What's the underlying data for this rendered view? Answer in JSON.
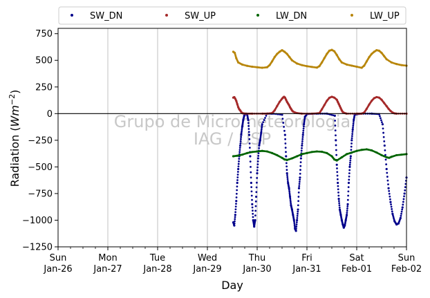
{
  "chart_data": {
    "type": "scatter",
    "title": "",
    "xlabel": "Day",
    "ylabel": "Radiation (Wm⁻²)",
    "ylabel_parts": {
      "main": "Radiation (",
      "unit": "Wm",
      "exp": "−2",
      "close": ")"
    },
    "watermark": [
      "Grupo de Micrometeorologia",
      "IAG / USP"
    ],
    "xlim": [
      0,
      7
    ],
    "ylim": [
      -1250,
      800
    ],
    "yticks": [
      750,
      500,
      250,
      0,
      -250,
      -500,
      -750,
      -1000,
      -1250
    ],
    "ytick_labels": [
      "750",
      "500",
      "250",
      "0",
      "−250",
      "−500",
      "−750",
      "−1000",
      "−1250"
    ],
    "xticks": [
      {
        "day": 0,
        "line1": "Sun",
        "line2": "Jan-26"
      },
      {
        "day": 1,
        "line1": "Mon",
        "line2": "Jan-27"
      },
      {
        "day": 2,
        "line1": "Tue",
        "line2": "Jan-28"
      },
      {
        "day": 3,
        "line1": "Wed",
        "line2": "Jan-29"
      },
      {
        "day": 4,
        "line1": "Thu",
        "line2": "Jan-30"
      },
      {
        "day": 5,
        "line1": "Fri",
        "line2": "Jan-31"
      },
      {
        "day": 6,
        "line1": "Sat",
        "line2": "Feb-01"
      },
      {
        "day": 7,
        "line1": "Sun",
        "line2": "Feb-02"
      }
    ],
    "grid": "x",
    "zero_line": 0,
    "legend": {
      "placement": "top",
      "columns": 4
    },
    "series": [
      {
        "name": "SW_DN",
        "color": "#00008b",
        "points": [
          [
            3.52,
            -1020
          ],
          [
            3.54,
            -1050
          ],
          [
            3.56,
            -950
          ],
          [
            3.58,
            -820
          ],
          [
            3.6,
            -650
          ],
          [
            3.62,
            -520
          ],
          [
            3.64,
            -400
          ],
          [
            3.66,
            -300
          ],
          [
            3.68,
            -200
          ],
          [
            3.7,
            -120
          ],
          [
            3.72,
            -60
          ],
          [
            3.74,
            -20
          ],
          [
            3.76,
            -5
          ],
          [
            3.78,
            0
          ],
          [
            3.8,
            -10
          ],
          [
            3.82,
            -60
          ],
          [
            3.84,
            -200
          ],
          [
            3.86,
            -400
          ],
          [
            3.88,
            -650
          ],
          [
            3.9,
            -850
          ],
          [
            3.92,
            -1000
          ],
          [
            3.94,
            -1060
          ],
          [
            3.96,
            -1000
          ],
          [
            3.98,
            -780
          ],
          [
            4.0,
            -560
          ],
          [
            4.02,
            -420
          ],
          [
            4.04,
            -300
          ],
          [
            4.06,
            -250
          ],
          [
            4.08,
            -180
          ],
          [
            4.1,
            -100
          ],
          [
            4.2,
            0
          ],
          [
            4.3,
            0
          ],
          [
            4.5,
            -10
          ],
          [
            4.56,
            -200
          ],
          [
            4.58,
            -400
          ],
          [
            4.6,
            -560
          ],
          [
            4.62,
            -650
          ],
          [
            4.64,
            -700
          ],
          [
            4.66,
            -780
          ],
          [
            4.68,
            -860
          ],
          [
            4.7,
            -900
          ],
          [
            4.72,
            -950
          ],
          [
            4.74,
            -1000
          ],
          [
            4.76,
            -1080
          ],
          [
            4.78,
            -1100
          ],
          [
            4.8,
            -1000
          ],
          [
            4.82,
            -900
          ],
          [
            4.84,
            -700
          ],
          [
            4.86,
            -600
          ],
          [
            4.88,
            -420
          ],
          [
            4.9,
            -300
          ],
          [
            4.92,
            -200
          ],
          [
            4.94,
            -100
          ],
          [
            4.96,
            -30
          ],
          [
            5.0,
            -5
          ],
          [
            5.2,
            0
          ],
          [
            5.4,
            0
          ],
          [
            5.56,
            -20
          ],
          [
            5.58,
            -250
          ],
          [
            5.6,
            -480
          ],
          [
            5.62,
            -650
          ],
          [
            5.64,
            -800
          ],
          [
            5.66,
            -900
          ],
          [
            5.68,
            -950
          ],
          [
            5.7,
            -1000
          ],
          [
            5.72,
            -1040
          ],
          [
            5.74,
            -1070
          ],
          [
            5.76,
            -1050
          ],
          [
            5.78,
            -1000
          ],
          [
            5.8,
            -950
          ],
          [
            5.82,
            -850
          ],
          [
            5.84,
            -650
          ],
          [
            5.86,
            -500
          ],
          [
            5.88,
            -400
          ],
          [
            5.9,
            -250
          ],
          [
            5.92,
            -150
          ],
          [
            5.94,
            -60
          ],
          [
            5.96,
            -10
          ],
          [
            6.1,
            0
          ],
          [
            6.3,
            0
          ],
          [
            6.45,
            -5
          ],
          [
            6.52,
            -100
          ],
          [
            6.56,
            -300
          ],
          [
            6.6,
            -520
          ],
          [
            6.64,
            -700
          ],
          [
            6.68,
            -830
          ],
          [
            6.72,
            -940
          ],
          [
            6.76,
            -1010
          ],
          [
            6.8,
            -1040
          ],
          [
            6.84,
            -1030
          ],
          [
            6.88,
            -980
          ],
          [
            6.92,
            -880
          ],
          [
            6.96,
            -750
          ],
          [
            7.0,
            -600
          ]
        ]
      },
      {
        "name": "SW_UP",
        "color": "#a52a2a",
        "points": [
          [
            3.52,
            150
          ],
          [
            3.54,
            155
          ],
          [
            3.56,
            140
          ],
          [
            3.58,
            120
          ],
          [
            3.6,
            90
          ],
          [
            3.62,
            60
          ],
          [
            3.64,
            40
          ],
          [
            3.66,
            30
          ],
          [
            3.68,
            15
          ],
          [
            3.7,
            5
          ],
          [
            3.72,
            2
          ],
          [
            3.76,
            0
          ],
          [
            3.9,
            0
          ],
          [
            4.1,
            0
          ],
          [
            4.2,
            0
          ],
          [
            4.3,
            5
          ],
          [
            4.35,
            30
          ],
          [
            4.4,
            70
          ],
          [
            4.45,
            110
          ],
          [
            4.5,
            140
          ],
          [
            4.52,
            150
          ],
          [
            4.54,
            158
          ],
          [
            4.56,
            150
          ],
          [
            4.58,
            130
          ],
          [
            4.6,
            110
          ],
          [
            4.62,
            95
          ],
          [
            4.64,
            80
          ],
          [
            4.66,
            60
          ],
          [
            4.68,
            45
          ],
          [
            4.7,
            30
          ],
          [
            4.72,
            20
          ],
          [
            4.76,
            10
          ],
          [
            4.8,
            5
          ],
          [
            4.9,
            0
          ],
          [
            5.1,
            0
          ],
          [
            5.25,
            5
          ],
          [
            5.3,
            40
          ],
          [
            5.35,
            80
          ],
          [
            5.4,
            120
          ],
          [
            5.45,
            148
          ],
          [
            5.5,
            158
          ],
          [
            5.55,
            150
          ],
          [
            5.6,
            130
          ],
          [
            5.62,
            110
          ],
          [
            5.64,
            90
          ],
          [
            5.66,
            70
          ],
          [
            5.68,
            50
          ],
          [
            5.7,
            30
          ],
          [
            5.72,
            15
          ],
          [
            5.76,
            5
          ],
          [
            5.8,
            0
          ],
          [
            6.0,
            0
          ],
          [
            6.1,
            0
          ],
          [
            6.15,
            10
          ],
          [
            6.2,
            45
          ],
          [
            6.25,
            85
          ],
          [
            6.3,
            120
          ],
          [
            6.35,
            145
          ],
          [
            6.4,
            155
          ],
          [
            6.45,
            150
          ],
          [
            6.5,
            130
          ],
          [
            6.55,
            100
          ],
          [
            6.6,
            70
          ],
          [
            6.64,
            45
          ],
          [
            6.68,
            25
          ],
          [
            6.72,
            10
          ],
          [
            6.76,
            2
          ],
          [
            6.8,
            0
          ],
          [
            7.0,
            0
          ]
        ]
      },
      {
        "name": "LW_DN",
        "color": "#006400",
        "points": [
          [
            3.52,
            -400
          ],
          [
            3.6,
            -395
          ],
          [
            3.7,
            -385
          ],
          [
            3.8,
            -370
          ],
          [
            3.9,
            -360
          ],
          [
            4.0,
            -355
          ],
          [
            4.1,
            -350
          ],
          [
            4.2,
            -355
          ],
          [
            4.3,
            -370
          ],
          [
            4.4,
            -390
          ],
          [
            4.5,
            -415
          ],
          [
            4.55,
            -430
          ],
          [
            4.6,
            -435
          ],
          [
            4.7,
            -420
          ],
          [
            4.8,
            -400
          ],
          [
            4.9,
            -380
          ],
          [
            5.0,
            -370
          ],
          [
            5.1,
            -360
          ],
          [
            5.2,
            -355
          ],
          [
            5.3,
            -358
          ],
          [
            5.4,
            -370
          ],
          [
            5.5,
            -400
          ],
          [
            5.55,
            -430
          ],
          [
            5.6,
            -440
          ],
          [
            5.7,
            -410
          ],
          [
            5.8,
            -380
          ],
          [
            5.9,
            -365
          ],
          [
            6.0,
            -350
          ],
          [
            6.1,
            -340
          ],
          [
            6.2,
            -335
          ],
          [
            6.3,
            -345
          ],
          [
            6.4,
            -365
          ],
          [
            6.5,
            -390
          ],
          [
            6.6,
            -410
          ],
          [
            6.65,
            -415
          ],
          [
            6.7,
            -405
          ],
          [
            6.8,
            -390
          ],
          [
            6.9,
            -385
          ],
          [
            7.0,
            -380
          ]
        ]
      },
      {
        "name": "LW_UP",
        "color": "#b8860b",
        "points": [
          [
            3.52,
            580
          ],
          [
            3.55,
            570
          ],
          [
            3.58,
            520
          ],
          [
            3.62,
            480
          ],
          [
            3.7,
            460
          ],
          [
            3.8,
            448
          ],
          [
            3.9,
            440
          ],
          [
            4.0,
            435
          ],
          [
            4.1,
            430
          ],
          [
            4.2,
            435
          ],
          [
            4.25,
            455
          ],
          [
            4.3,
            490
          ],
          [
            4.35,
            530
          ],
          [
            4.4,
            560
          ],
          [
            4.45,
            580
          ],
          [
            4.5,
            595
          ],
          [
            4.55,
            580
          ],
          [
            4.6,
            560
          ],
          [
            4.65,
            530
          ],
          [
            4.7,
            500
          ],
          [
            4.8,
            470
          ],
          [
            4.9,
            455
          ],
          [
            5.0,
            445
          ],
          [
            5.1,
            438
          ],
          [
            5.2,
            432
          ],
          [
            5.25,
            445
          ],
          [
            5.3,
            480
          ],
          [
            5.35,
            520
          ],
          [
            5.4,
            560
          ],
          [
            5.45,
            590
          ],
          [
            5.5,
            598
          ],
          [
            5.55,
            585
          ],
          [
            5.6,
            550
          ],
          [
            5.65,
            510
          ],
          [
            5.7,
            480
          ],
          [
            5.8,
            460
          ],
          [
            5.9,
            450
          ],
          [
            6.0,
            440
          ],
          [
            6.1,
            430
          ],
          [
            6.15,
            450
          ],
          [
            6.2,
            490
          ],
          [
            6.25,
            530
          ],
          [
            6.3,
            560
          ],
          [
            6.35,
            580
          ],
          [
            6.4,
            595
          ],
          [
            6.45,
            590
          ],
          [
            6.5,
            570
          ],
          [
            6.55,
            540
          ],
          [
            6.6,
            510
          ],
          [
            6.7,
            480
          ],
          [
            6.8,
            465
          ],
          [
            6.9,
            455
          ],
          [
            7.0,
            450
          ]
        ]
      }
    ]
  }
}
